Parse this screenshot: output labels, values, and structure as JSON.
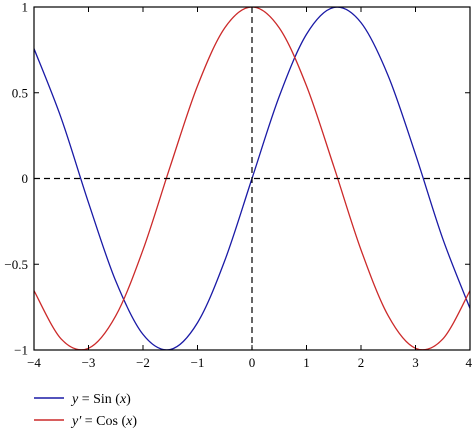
{
  "chart_data": {
    "type": "line",
    "title": "",
    "xlabel": "",
    "ylabel": "",
    "xlim": [
      -4,
      4
    ],
    "ylim": [
      -1,
      1
    ],
    "grid": false,
    "reference_lines": [
      {
        "orientation": "horizontal",
        "value": 0,
        "style": "dashed",
        "color": "#000000"
      },
      {
        "orientation": "vertical",
        "value": 0,
        "style": "dashed",
        "color": "#000000"
      }
    ],
    "x_ticks": [
      -4,
      -3,
      -2,
      -1,
      0,
      1,
      2,
      3,
      4
    ],
    "x_tick_labels": [
      "−4",
      "−3",
      "−2",
      "−1",
      "0",
      "1",
      "2",
      "3",
      "4"
    ],
    "y_ticks": [
      -1,
      -0.5,
      0,
      0.5,
      1
    ],
    "y_tick_labels": [
      "−1",
      "−0.5",
      "0",
      "0.5",
      "1"
    ],
    "legend": {
      "placement": "bottom-left",
      "entries": [
        {
          "series": "sin",
          "parts": [
            "y",
            " = Sin (",
            "x",
            ")"
          ],
          "italic": [
            true,
            false,
            true,
            false
          ]
        },
        {
          "series": "cos",
          "parts": [
            "y′",
            " = Cos (",
            "x",
            ")"
          ],
          "italic": [
            true,
            false,
            true,
            false
          ]
        }
      ]
    },
    "series": [
      {
        "key": "sin",
        "color": "#1a1aa6",
        "x": [
          -4,
          -3.5,
          -3,
          -2.5,
          -2,
          -1.5,
          -1,
          -0.5,
          0,
          0.5,
          1,
          1.5,
          2,
          2.5,
          3,
          3.5,
          4
        ],
        "values": [
          0.757,
          0.351,
          -0.141,
          -0.598,
          -0.909,
          -0.997,
          -0.841,
          -0.479,
          0,
          0.479,
          0.841,
          0.997,
          0.909,
          0.598,
          0.141,
          -0.351,
          -0.757
        ]
      },
      {
        "key": "cos",
        "color": "#cc2a2a",
        "x": [
          -4,
          -3.5,
          -3,
          -2.5,
          -2,
          -1.5,
          -1,
          -0.5,
          0,
          0.5,
          1,
          1.5,
          2,
          2.5,
          3,
          3.5,
          4
        ],
        "values": [
          -0.654,
          -0.936,
          -0.99,
          -0.801,
          -0.416,
          0.071,
          0.54,
          0.878,
          1,
          0.878,
          0.54,
          0.071,
          -0.416,
          -0.801,
          -0.99,
          -0.936,
          -0.654
        ]
      }
    ]
  }
}
